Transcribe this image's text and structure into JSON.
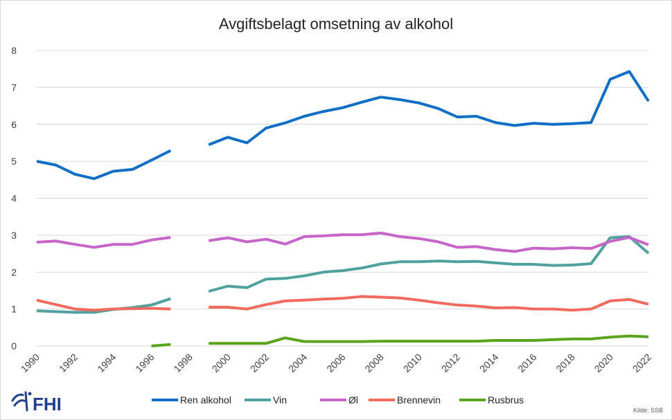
{
  "chart_data": {
    "type": "line",
    "title": "Avgiftsbelagt omsetning av alkohol",
    "xlabel": "",
    "ylabel": "",
    "x": [
      1990,
      1991,
      1992,
      1993,
      1994,
      1995,
      1996,
      1997,
      1998,
      1999,
      2000,
      2001,
      2002,
      2003,
      2004,
      2005,
      2006,
      2007,
      2008,
      2009,
      2010,
      2011,
      2012,
      2013,
      2014,
      2015,
      2016,
      2017,
      2018,
      2019,
      2020,
      2021,
      2022
    ],
    "xticks": [
      "1990",
      "1992",
      "1994",
      "1996",
      "1998",
      "2000",
      "2002",
      "2004",
      "2006",
      "2008",
      "2010",
      "2012",
      "2014",
      "2016",
      "2018",
      "2020",
      "2022"
    ],
    "yticks": [
      "0",
      "1",
      "2",
      "3",
      "4",
      "5",
      "6",
      "7",
      "8"
    ],
    "ylim": [
      0,
      8
    ],
    "xlim": [
      1990,
      2022
    ],
    "grid": "horizontal",
    "legend_position": "bottom",
    "series": [
      {
        "name": "Ren alkohol",
        "color": "#0f6fc6",
        "values": [
          5.0,
          4.9,
          4.65,
          4.53,
          4.73,
          4.78,
          5.03,
          5.29,
          null,
          5.45,
          5.65,
          5.5,
          5.9,
          6.04,
          6.22,
          6.35,
          6.45,
          6.6,
          6.74,
          6.67,
          6.58,
          6.43,
          6.2,
          6.22,
          6.05,
          5.97,
          6.03,
          6.0,
          6.02,
          6.05,
          7.22,
          7.43,
          6.63
        ]
      },
      {
        "name": "Vin",
        "color": "#4ea19e",
        "values": [
          0.95,
          0.93,
          0.91,
          0.91,
          0.99,
          1.04,
          1.11,
          1.28,
          null,
          1.48,
          1.62,
          1.58,
          1.81,
          1.83,
          1.9,
          2.0,
          2.04,
          2.11,
          2.22,
          2.28,
          2.28,
          2.3,
          2.28,
          2.29,
          2.25,
          2.21,
          2.21,
          2.18,
          2.19,
          2.23,
          2.93,
          2.96,
          2.51
        ]
      },
      {
        "name": "Øl",
        "color": "#c764c9",
        "values": [
          2.81,
          2.84,
          2.75,
          2.67,
          2.75,
          2.75,
          2.87,
          2.94,
          null,
          2.85,
          2.93,
          2.82,
          2.89,
          2.76,
          2.96,
          2.98,
          3.01,
          3.01,
          3.06,
          2.96,
          2.91,
          2.82,
          2.67,
          2.69,
          2.61,
          2.56,
          2.65,
          2.63,
          2.66,
          2.64,
          2.83,
          2.94,
          2.74
        ]
      },
      {
        "name": "Brennevin",
        "color": "#f06a5e",
        "values": [
          1.24,
          1.12,
          1.0,
          0.97,
          1.0,
          1.01,
          1.02,
          1.0,
          null,
          1.05,
          1.05,
          1.0,
          1.12,
          1.22,
          1.24,
          1.27,
          1.29,
          1.34,
          1.32,
          1.3,
          1.24,
          1.17,
          1.11,
          1.08,
          1.03,
          1.04,
          1.0,
          1.0,
          0.97,
          1.0,
          1.22,
          1.26,
          1.13
        ]
      },
      {
        "name": "Rusbrus",
        "color": "#5aa31c",
        "values": [
          null,
          null,
          null,
          null,
          null,
          null,
          0.0,
          0.04,
          null,
          0.07,
          0.07,
          0.07,
          0.07,
          0.22,
          0.12,
          0.12,
          0.12,
          0.12,
          0.13,
          0.13,
          0.13,
          0.13,
          0.13,
          0.13,
          0.15,
          0.15,
          0.15,
          0.17,
          0.19,
          0.19,
          0.24,
          0.27,
          0.25
        ]
      }
    ],
    "source_note": "Kilde: SSB"
  },
  "logo": {
    "text": "FHI",
    "icon": "fhi-logo-icon"
  }
}
